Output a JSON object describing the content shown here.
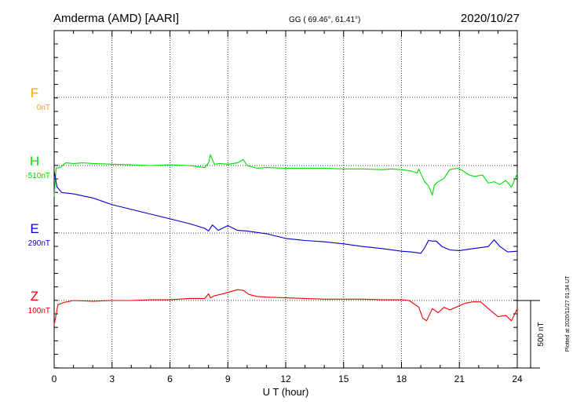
{
  "header": {
    "station": "Amderma (AMD)  [AARI]",
    "coords": "GG ( 69.46°,  61.41°)",
    "date": "2020/10/27"
  },
  "side_note": "Plotted at 2020/11/27 01:34 UT",
  "chart_data": {
    "type": "line",
    "xlabel": "U T (hour)",
    "xlim": [
      0,
      24
    ],
    "xticks": [
      "0",
      "3",
      "6",
      "9",
      "12",
      "15",
      "18",
      "21",
      "24"
    ],
    "scale_bar_label": "500 nT",
    "scale_bar_nT": 500,
    "series": [
      {
        "name": "F",
        "baseline_label": "0nT",
        "color": "#ffa500",
        "x": [],
        "y": []
      },
      {
        "name": "H",
        "baseline_label": "-510nT",
        "color": "#00dd00",
        "x": [
          0,
          0.1,
          0.3,
          0.6,
          1,
          1.5,
          2,
          3,
          4,
          5,
          6,
          7,
          7.8,
          8.0,
          8.1,
          8.3,
          8.6,
          9.0,
          9.5,
          9.8,
          10.0,
          10.5,
          11,
          12,
          13,
          14,
          15,
          16,
          17,
          17.5,
          18,
          18.5,
          18.8,
          18.9,
          19.0,
          19.2,
          19.4,
          19.6,
          19.7,
          19.9,
          20.2,
          20.5,
          20.9,
          21.2,
          21.5,
          21.8,
          22.2,
          22.5,
          22.8,
          23.1,
          23.4,
          23.7,
          24
        ],
        "y": [
          -230,
          -20,
          -15,
          20,
          15,
          20,
          15,
          10,
          5,
          0,
          5,
          0,
          -15,
          20,
          80,
          10,
          15,
          10,
          20,
          45,
          0,
          -20,
          -15,
          -20,
          -20,
          -20,
          -25,
          -25,
          -30,
          -25,
          -30,
          -40,
          -55,
          -25,
          -60,
          -120,
          -150,
          -220,
          -145,
          -120,
          -95,
          -30,
          -20,
          -40,
          -70,
          -80,
          -70,
          -130,
          -120,
          -140,
          -110,
          -160,
          -60
        ]
      },
      {
        "name": "E",
        "baseline_label": "290nT",
        "color": "#0000cc",
        "x": [
          0,
          0.15,
          0.4,
          1,
          2,
          3,
          4,
          5,
          6,
          7,
          7.8,
          8.0,
          8.2,
          8.5,
          9,
          9.5,
          10,
          11,
          12,
          13,
          14,
          15,
          16,
          17,
          18,
          18.5,
          19,
          19.2,
          19.4,
          19.6,
          19.8,
          20.1,
          20.5,
          21,
          21.5,
          22,
          22.5,
          22.8,
          23.1,
          23.5,
          24
        ],
        "y": [
          460,
          340,
          300,
          290,
          260,
          210,
          175,
          140,
          105,
          70,
          35,
          15,
          60,
          20,
          55,
          20,
          15,
          -5,
          -40,
          -55,
          -65,
          -80,
          -100,
          -115,
          -135,
          -140,
          -150,
          -110,
          -55,
          -60,
          -60,
          -100,
          -125,
          -130,
          -120,
          -110,
          -100,
          -50,
          -100,
          -140,
          -135
        ]
      },
      {
        "name": "Z",
        "baseline_label": "100nT",
        "color": "#ee0000",
        "x": [
          0,
          0.2,
          0.5,
          1,
          2,
          3,
          4,
          5,
          6,
          7,
          7.8,
          8.0,
          8.1,
          8.3,
          8.6,
          9.0,
          9.5,
          9.8,
          10.1,
          10.5,
          11,
          12,
          13,
          14,
          15,
          16,
          17,
          18,
          18.4,
          18.7,
          18.9,
          19.1,
          19.3,
          19.6,
          19.9,
          20.2,
          20.5,
          20.9,
          21.3,
          21.7,
          22.1,
          22.5,
          23.0,
          23.4,
          23.7,
          24
        ],
        "y": [
          -180,
          -30,
          -15,
          0,
          -5,
          0,
          0,
          5,
          5,
          15,
          15,
          50,
          20,
          35,
          45,
          60,
          80,
          75,
          45,
          30,
          25,
          20,
          15,
          10,
          10,
          10,
          5,
          5,
          0,
          -30,
          -50,
          -130,
          -150,
          -60,
          -90,
          -50,
          -70,
          -45,
          -20,
          -10,
          -10,
          -60,
          -120,
          -110,
          -150,
          -60
        ]
      }
    ]
  }
}
